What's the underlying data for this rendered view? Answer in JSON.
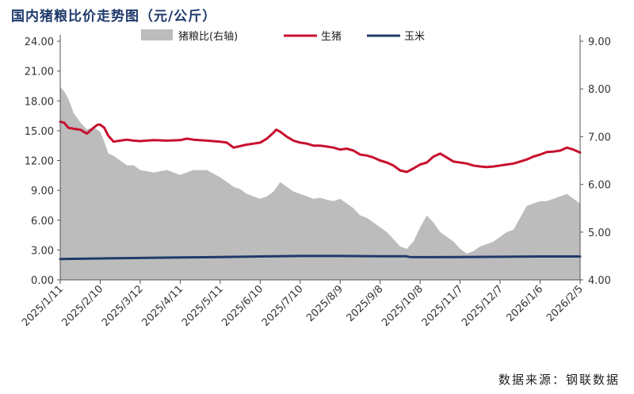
{
  "title": "国内猪粮比价走势图（元/公斤）",
  "source": "数据来源：钢联数据",
  "colors": {
    "ratio_fill": "#bcbcbc",
    "hog": "#c8102e",
    "corn": "#1f3a6b",
    "axis": "#555555"
  },
  "chart_data": {
    "type": "line",
    "legend_position": "top",
    "grid": false,
    "y_left": {
      "min": 0,
      "max": 24,
      "ticks": [
        "0.00",
        "3.00",
        "6.00",
        "9.00",
        "12.00",
        "15.00",
        "18.00",
        "21.00",
        "24.00"
      ]
    },
    "y_right": {
      "min": 4,
      "max": 9,
      "ticks": [
        "4.00",
        "5.00",
        "6.00",
        "7.00",
        "8.00",
        "9.00"
      ]
    },
    "x_ticks": [
      "2025/1/11",
      "2025/2/10",
      "2025/3/12",
      "2025/4/11",
      "2025/5/11",
      "2025/6/10",
      "2025/7/10",
      "2025/8/9",
      "2025/9/8",
      "2025/10/8",
      "2025/11/7",
      "2025/12/7",
      "2026/1/6",
      "2026/2/5"
    ],
    "x_range": [
      0,
      390
    ],
    "series": [
      {
        "name": "猪粮比(右轴)",
        "axis": "right",
        "kind": "area",
        "x": [
          0,
          3,
          6,
          10,
          15,
          20,
          25,
          30,
          33,
          36,
          40,
          45,
          50,
          55,
          60,
          70,
          80,
          90,
          100,
          110,
          120,
          125,
          130,
          135,
          140,
          145,
          150,
          155,
          160,
          165,
          170,
          175,
          180,
          185,
          190,
          195,
          200,
          205,
          210,
          215,
          220,
          225,
          230,
          235,
          240,
          245,
          250,
          255,
          260,
          265,
          270,
          275,
          280,
          285,
          290,
          295,
          300,
          305,
          310,
          315,
          320,
          325,
          330,
          335,
          340,
          345,
          350,
          355,
          360,
          365,
          370,
          375,
          380,
          385,
          390
        ],
        "values": [
          8.05,
          7.95,
          7.8,
          7.5,
          7.3,
          7.15,
          7.2,
          7.1,
          6.9,
          6.65,
          6.6,
          6.5,
          6.4,
          6.4,
          6.3,
          6.25,
          6.3,
          6.2,
          6.3,
          6.3,
          6.15,
          6.05,
          5.95,
          5.9,
          5.8,
          5.75,
          5.7,
          5.75,
          5.85,
          6.05,
          5.95,
          5.85,
          5.8,
          5.75,
          5.7,
          5.72,
          5.68,
          5.65,
          5.7,
          5.6,
          5.5,
          5.35,
          5.3,
          5.2,
          5.1,
          5.0,
          4.85,
          4.7,
          4.65,
          4.8,
          5.1,
          5.35,
          5.2,
          5.0,
          4.9,
          4.8,
          4.65,
          4.55,
          4.6,
          4.7,
          4.75,
          4.8,
          4.9,
          5.0,
          5.05,
          5.3,
          5.55,
          5.6,
          5.65,
          5.65,
          5.7,
          5.75,
          5.8,
          5.7,
          5.6
        ]
      },
      {
        "name": "生猪",
        "axis": "left",
        "kind": "line",
        "x": [
          0,
          3,
          6,
          10,
          15,
          20,
          25,
          28,
          30,
          33,
          36,
          40,
          45,
          50,
          55,
          60,
          70,
          80,
          90,
          95,
          100,
          110,
          120,
          125,
          130,
          140,
          145,
          150,
          155,
          160,
          162,
          165,
          170,
          175,
          180,
          185,
          190,
          195,
          200,
          205,
          210,
          215,
          220,
          225,
          230,
          235,
          240,
          245,
          250,
          255,
          260,
          265,
          270,
          275,
          280,
          285,
          290,
          295,
          300,
          305,
          310,
          315,
          320,
          325,
          330,
          335,
          340,
          345,
          350,
          355,
          360,
          365,
          370,
          375,
          380,
          385,
          390
        ],
        "values": [
          15.9,
          15.8,
          15.3,
          15.2,
          15.1,
          14.7,
          15.3,
          15.6,
          15.6,
          15.3,
          14.5,
          13.9,
          14.0,
          14.1,
          14.0,
          13.95,
          14.05,
          14.0,
          14.05,
          14.2,
          14.1,
          14.0,
          13.9,
          13.8,
          13.3,
          13.6,
          13.7,
          13.8,
          14.2,
          14.8,
          15.1,
          14.9,
          14.4,
          14.0,
          13.8,
          13.7,
          13.5,
          13.5,
          13.4,
          13.3,
          13.1,
          13.2,
          13.0,
          12.6,
          12.5,
          12.3,
          12.0,
          11.8,
          11.5,
          11.0,
          10.85,
          11.2,
          11.6,
          11.8,
          12.4,
          12.7,
          12.3,
          11.9,
          11.8,
          11.7,
          11.5,
          11.4,
          11.35,
          11.4,
          11.5,
          11.6,
          11.7,
          11.9,
          12.1,
          12.4,
          12.6,
          12.85,
          12.9,
          13.0,
          13.3,
          13.1,
          12.8
        ]
      },
      {
        "name": "玉米",
        "axis": "left",
        "kind": "line",
        "x": [
          0,
          30,
          60,
          90,
          120,
          150,
          180,
          210,
          240,
          260,
          262,
          280,
          300,
          330,
          360,
          390
        ],
        "values": [
          2.1,
          2.15,
          2.2,
          2.25,
          2.3,
          2.35,
          2.4,
          2.4,
          2.38,
          2.37,
          2.3,
          2.28,
          2.3,
          2.32,
          2.35,
          2.35
        ]
      }
    ]
  }
}
